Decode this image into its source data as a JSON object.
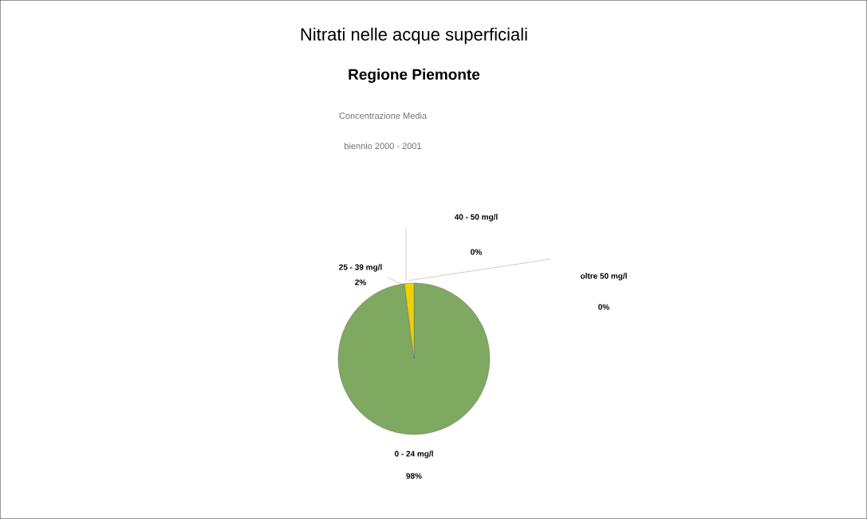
{
  "chart_data": {
    "type": "pie",
    "title": "Nitrati nelle acque superficiali",
    "subtitle": "Regione Piemonte",
    "annotations": [
      "Concentrazione Media",
      "biennio 2000 - 2001"
    ],
    "categories": [
      "0 - 24 mg/l",
      "25 - 39 mg/l",
      "40 - 50 mg/l",
      "oltre 50 mg/l"
    ],
    "values": [
      98,
      2,
      0,
      0
    ],
    "value_labels": [
      "98%",
      "2%",
      "0%",
      "0%"
    ],
    "colors": [
      "#7fa860",
      "#f0d000",
      null,
      null
    ]
  }
}
